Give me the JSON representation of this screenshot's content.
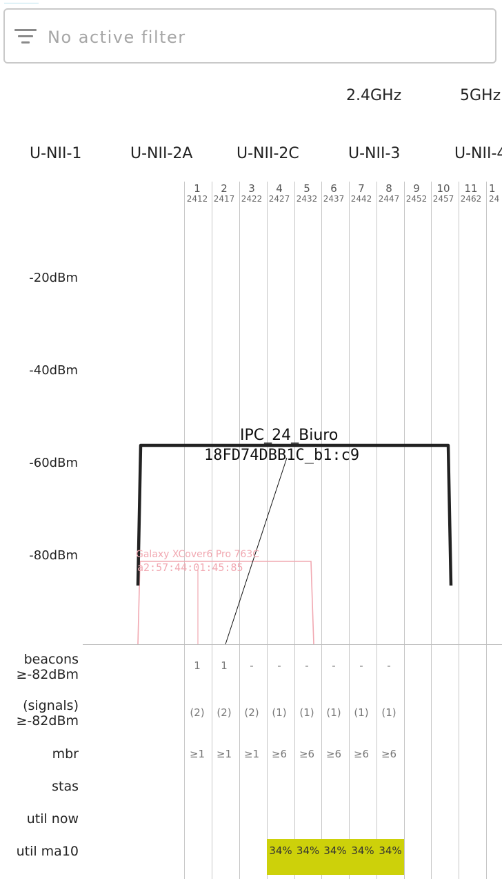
{
  "filter": {
    "placeholder": "No active filter",
    "icon": "filter-list-icon"
  },
  "freq_bands": [
    "2.4GHz",
    "5GHz"
  ],
  "unii_bands": [
    "U-NII-1",
    "U-NII-2A",
    "U-NII-2C",
    "U-NII-3",
    "U-NII-4"
  ],
  "y_axis": [
    "-20dBm",
    "-40dBm",
    "-60dBm",
    "-80dBm"
  ],
  "channels": [
    {
      "num": "1",
      "freq": "2412"
    },
    {
      "num": "2",
      "freq": "2417"
    },
    {
      "num": "3",
      "freq": "2422"
    },
    {
      "num": "4",
      "freq": "2427"
    },
    {
      "num": "5",
      "freq": "2432"
    },
    {
      "num": "6",
      "freq": "2437"
    },
    {
      "num": "7",
      "freq": "2442"
    },
    {
      "num": "8",
      "freq": "2447"
    },
    {
      "num": "9",
      "freq": "2452"
    },
    {
      "num": "10",
      "freq": "2457"
    },
    {
      "num": "11",
      "freq": "2462"
    },
    {
      "num": "1",
      "freq": "24"
    }
  ],
  "networks": [
    {
      "ssid": "IPC_24_Biuro",
      "bssid": "18FD74DBB1C_b1:c9",
      "color": "#222222"
    },
    {
      "ssid": "Galaxy XCover6 Pro 763C",
      "bssid": "a2:57:44:01:45:85",
      "color": "#f1a8b1"
    }
  ],
  "stats": {
    "labels": {
      "beacons": [
        "beacons",
        "≥-82dBm"
      ],
      "signals": [
        "(signals)",
        "≥-82dBm"
      ],
      "mbr": "mbr",
      "stas": "stas",
      "util_now": "util now",
      "util_ma10": "util ma10"
    },
    "beacons": [
      "1",
      "1",
      "-",
      "-",
      "-",
      "-",
      "-",
      "-"
    ],
    "signals": [
      "(2)",
      "(2)",
      "(2)",
      "(1)",
      "(1)",
      "(1)",
      "(1)",
      "(1)"
    ],
    "mbr": [
      "≥1",
      "≥1",
      "≥1",
      "≥6",
      "≥6",
      "≥6",
      "≥6",
      "≥6"
    ],
    "util_ma10": [
      "",
      "",
      "",
      "34%",
      "34%",
      "34%",
      "34%",
      "34%"
    ],
    "util_color": "#cdd10a"
  }
}
